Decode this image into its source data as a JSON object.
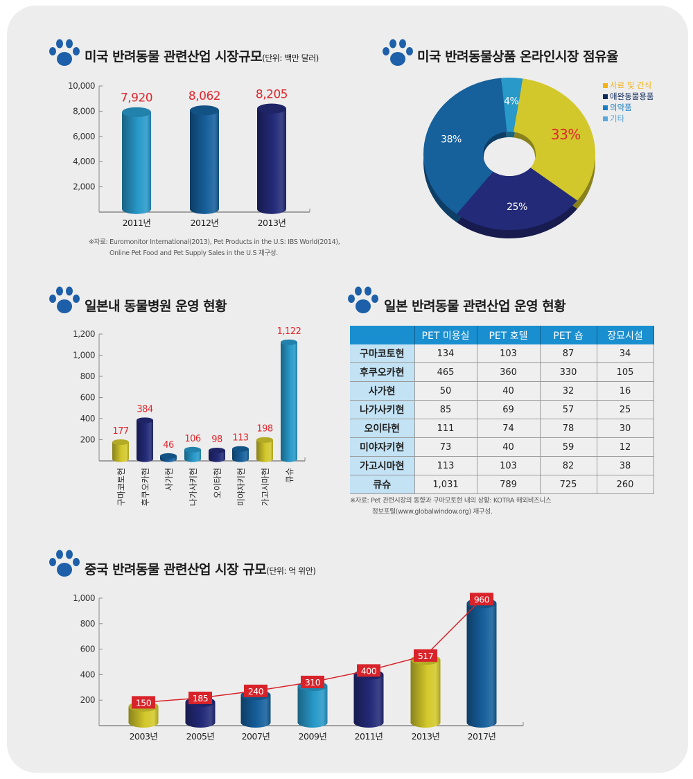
{
  "colors": {
    "cyan": "#2899c9",
    "blue": "#16609c",
    "navy": "#232a78",
    "yellow": "#d3c82b",
    "red": "#e0262c",
    "paw": "#1d5fa8"
  },
  "sections": {
    "us_market": {
      "title": "미국 반려동물 관련산업 시장규모",
      "unit": "(단위: 백만 달러)",
      "footnote_1": "※자료: Euromonitor International(2013), Pet Products in the U.S: IBS World(2014),",
      "footnote_2": "Online Pet Food and Pet Supply Sales in the U.S 재구성."
    },
    "us_online": {
      "title": "미국 반려동물상품 온라인시장 점유율"
    },
    "jp_hospital": {
      "title": "일본내 동물병원 운영 현황"
    },
    "jp_industry": {
      "title": "일본 반려동물 관련산업 운영 현황",
      "footnote_1": "※자료: Pet 관련시장의 동향과 구마모토현 내의 상황: KOTRA 해외비즈니스",
      "footnote_2": "정보포털(www.globalwindow.org) 재구성."
    },
    "cn_market": {
      "title": "중국 반려동물 관련산업 시장 규모",
      "unit": "(단위: 억 위안)"
    }
  },
  "chart_data": [
    {
      "type": "bar",
      "title": "미국 반려동물 관련산업 시장규모",
      "unit": "백만 달러",
      "categories": [
        "2011년",
        "2012년",
        "2013년"
      ],
      "values": [
        7920,
        8062,
        8205
      ],
      "value_labels": [
        "7,920",
        "8,062",
        "8,205"
      ],
      "ylim": [
        0,
        10000
      ],
      "yticks": [
        2000,
        4000,
        6000,
        8000,
        10000
      ],
      "ytick_labels": [
        "2,000",
        "4,000",
        "6,000",
        "8,000",
        "10,000"
      ],
      "bar_colors": [
        "cyan",
        "blue",
        "navy"
      ]
    },
    {
      "type": "pie",
      "title": "미국 반려동물상품 온라인시장 점유율",
      "donut": true,
      "slices": [
        {
          "name": "사료 및 간식",
          "value": 33,
          "label": "33%",
          "color": "yellow",
          "legend_color": "#f2b318"
        },
        {
          "name": "애완동물용품",
          "value": 25,
          "label": "25%",
          "color": "navy",
          "legend_color": "#0f2a5c"
        },
        {
          "name": "의약품",
          "value": 38,
          "label": "38%",
          "color": "blue",
          "legend_color": "#1a7fc4"
        },
        {
          "name": "기타",
          "value": 4,
          "label": "4%",
          "color": "cyan",
          "legend_color": "#5aa8dc"
        }
      ],
      "legend": "top-right"
    },
    {
      "type": "bar",
      "title": "일본내 동물병원 운영 현황",
      "categories": [
        "구마코토현",
        "후쿠오카현",
        "사가현",
        "나가사키현",
        "오이타현",
        "미야자키현",
        "가고시마현",
        "큐슈"
      ],
      "values": [
        177,
        384,
        46,
        106,
        98,
        113,
        198,
        1122
      ],
      "value_labels": [
        "177",
        "384",
        "46",
        "106",
        "98",
        "113",
        "198",
        "1,122"
      ],
      "ylim": [
        0,
        1200
      ],
      "yticks": [
        200,
        400,
        600,
        800,
        1000,
        1200
      ],
      "ytick_labels": [
        "200",
        "400",
        "600",
        "800",
        "1,000",
        "1,200"
      ],
      "bar_colors": [
        "yellow",
        "navy",
        "blue",
        "cyan",
        "navy",
        "blue",
        "yellow",
        "cyan"
      ]
    },
    {
      "type": "table",
      "title": "일본 반려동물 관련산업 운영 현황",
      "columns": [
        "",
        "PET 미용실",
        "PET 호텔",
        "PET 숍",
        "장묘시설"
      ],
      "rows": [
        [
          "구마코토현",
          "134",
          "103",
          "87",
          "34"
        ],
        [
          "후쿠오카현",
          "465",
          "360",
          "330",
          "105"
        ],
        [
          "사가현",
          "50",
          "40",
          "32",
          "16"
        ],
        [
          "나가사키현",
          "85",
          "69",
          "57",
          "25"
        ],
        [
          "오이타현",
          "111",
          "74",
          "78",
          "30"
        ],
        [
          "미야자키현",
          "73",
          "40",
          "59",
          "12"
        ],
        [
          "가고시마현",
          "113",
          "103",
          "82",
          "38"
        ],
        [
          "큐슈",
          "1,031",
          "789",
          "725",
          "260"
        ]
      ]
    },
    {
      "type": "bar",
      "title": "중국 반려동물 관련산업 시장 규모",
      "unit": "억 위안",
      "with_line": true,
      "categories": [
        "2003년",
        "2005년",
        "2007년",
        "2009년",
        "2011년",
        "2013년",
        "2017년"
      ],
      "values": [
        150,
        185,
        240,
        310,
        400,
        517,
        960
      ],
      "value_labels": [
        "150",
        "185",
        "240",
        "310",
        "400",
        "517",
        "960"
      ],
      "ylim": [
        0,
        1000
      ],
      "yticks": [
        200,
        400,
        600,
        800,
        1000
      ],
      "ytick_labels": [
        "200",
        "400",
        "600",
        "800",
        "1,000"
      ],
      "bar_colors": [
        "yellow",
        "navy",
        "blue",
        "cyan",
        "navy",
        "yellow",
        "blue"
      ]
    }
  ]
}
